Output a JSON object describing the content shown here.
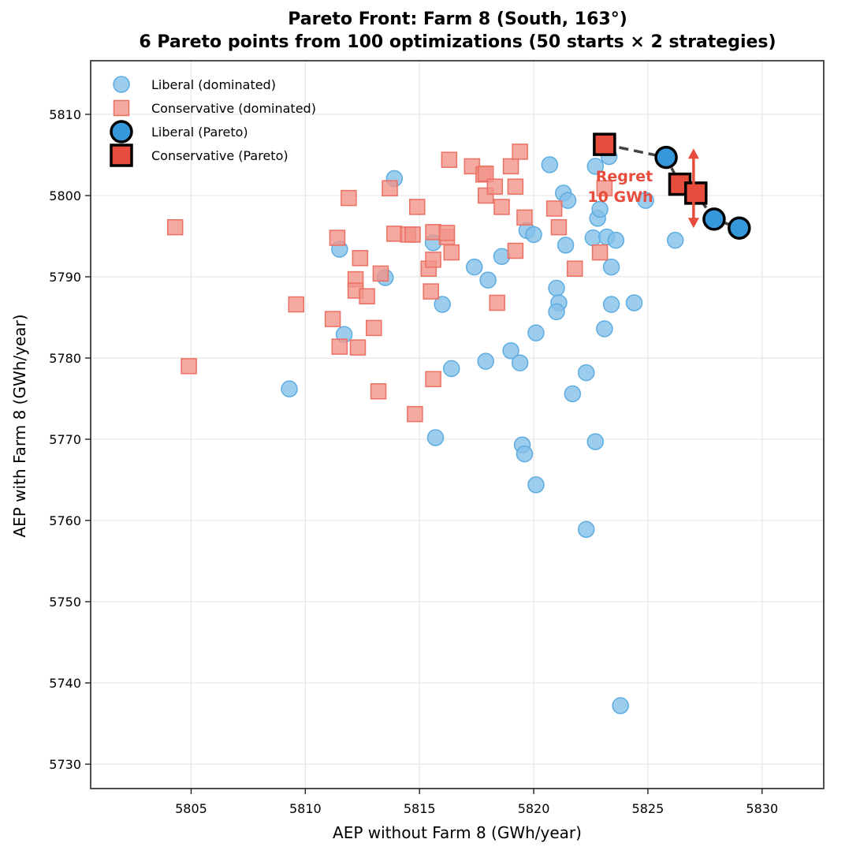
{
  "chart_data": {
    "type": "scatter",
    "title": "Pareto Front: Farm 8 (South, 163°)",
    "subtitle": "6 Pareto points from 100 optimizations (50 starts × 2 strategies)",
    "xlabel": "AEP without Farm 8 (GWh/year)",
    "ylabel": "AEP with Farm 8 (GWh/year)",
    "xlim": [
      5800.6,
      5832.7
    ],
    "ylim": [
      5727.0,
      5816.6
    ],
    "xticks": [
      5805,
      5810,
      5815,
      5820,
      5825,
      5830
    ],
    "yticks": [
      5730,
      5740,
      5750,
      5760,
      5770,
      5780,
      5790,
      5800,
      5810
    ],
    "grid": true,
    "legend_position": "upper left",
    "series": [
      {
        "name": "Liberal (dominated)",
        "marker": "circle",
        "color": "#85c1e9",
        "edge_color": "#5dade2",
        "points": [
          [
            5813.9,
            5802.1
          ],
          [
            5820.7,
            5803.8
          ],
          [
            5823.3,
            5804.8
          ],
          [
            5822.7,
            5803.6
          ],
          [
            5821.3,
            5800.3
          ],
          [
            5821.5,
            5799.4
          ],
          [
            5824.9,
            5799.4
          ],
          [
            5826.2,
            5794.5
          ],
          [
            5822.8,
            5797.2
          ],
          [
            5822.9,
            5798.3
          ],
          [
            5819.7,
            5795.7
          ],
          [
            5820.0,
            5795.2
          ],
          [
            5822.6,
            5794.8
          ],
          [
            5823.2,
            5794.9
          ],
          [
            5823.6,
            5794.5
          ],
          [
            5815.6,
            5794.2
          ],
          [
            5811.5,
            5793.4
          ],
          [
            5821.4,
            5793.9
          ],
          [
            5818.6,
            5792.5
          ],
          [
            5823.4,
            5791.2
          ],
          [
            5813.5,
            5789.9
          ],
          [
            5817.4,
            5791.2
          ],
          [
            5818.0,
            5789.6
          ],
          [
            5821.0,
            5788.6
          ],
          [
            5821.1,
            5786.8
          ],
          [
            5823.4,
            5786.6
          ],
          [
            5824.4,
            5786.8
          ],
          [
            5821.0,
            5785.7
          ],
          [
            5816.0,
            5786.6
          ],
          [
            5823.1,
            5783.6
          ],
          [
            5811.7,
            5782.9
          ],
          [
            5820.1,
            5783.1
          ],
          [
            5819.0,
            5780.9
          ],
          [
            5817.9,
            5779.6
          ],
          [
            5819.4,
            5779.4
          ],
          [
            5816.4,
            5778.7
          ],
          [
            5822.3,
            5778.2
          ],
          [
            5821.7,
            5775.6
          ],
          [
            5809.3,
            5776.2
          ],
          [
            5815.7,
            5770.2
          ],
          [
            5819.5,
            5769.3
          ],
          [
            5819.6,
            5768.2
          ],
          [
            5822.7,
            5769.7
          ],
          [
            5820.1,
            5764.4
          ],
          [
            5822.3,
            5758.9
          ],
          [
            5823.8,
            5737.2
          ]
        ]
      },
      {
        "name": "Conservative (dominated)",
        "marker": "square",
        "color": "#f1948a",
        "edge_color": "#ec7063",
        "points": [
          [
            5804.3,
            5796.1
          ],
          [
            5809.6,
            5786.6
          ],
          [
            5804.9,
            5779.0
          ],
          [
            5811.9,
            5799.7
          ],
          [
            5811.4,
            5794.8
          ],
          [
            5812.4,
            5792.3
          ],
          [
            5812.2,
            5789.7
          ],
          [
            5812.2,
            5788.3
          ],
          [
            5812.7,
            5787.6
          ],
          [
            5811.5,
            5781.4
          ],
          [
            5811.2,
            5784.8
          ],
          [
            5812.3,
            5781.3
          ],
          [
            5813.0,
            5783.7
          ],
          [
            5813.3,
            5790.4
          ],
          [
            5813.2,
            5775.9
          ],
          [
            5813.7,
            5800.9
          ],
          [
            5813.9,
            5795.3
          ],
          [
            5814.5,
            5795.2
          ],
          [
            5814.7,
            5795.2
          ],
          [
            5814.9,
            5798.6
          ],
          [
            5814.8,
            5773.1
          ],
          [
            5815.4,
            5791.0
          ],
          [
            5815.5,
            5788.2
          ],
          [
            5815.6,
            5792.1
          ],
          [
            5815.6,
            5795.5
          ],
          [
            5816.2,
            5794.9
          ],
          [
            5816.2,
            5795.4
          ],
          [
            5816.4,
            5793.0
          ],
          [
            5816.3,
            5804.4
          ],
          [
            5817.3,
            5803.6
          ],
          [
            5817.8,
            5802.6
          ],
          [
            5817.9,
            5802.7
          ],
          [
            5817.9,
            5800.0
          ],
          [
            5818.3,
            5801.1
          ],
          [
            5818.6,
            5798.6
          ],
          [
            5819.0,
            5803.6
          ],
          [
            5819.2,
            5801.1
          ],
          [
            5819.4,
            5805.4
          ],
          [
            5819.2,
            5793.2
          ],
          [
            5819.6,
            5797.3
          ],
          [
            5818.4,
            5786.8
          ],
          [
            5820.9,
            5798.4
          ],
          [
            5821.1,
            5796.1
          ],
          [
            5821.8,
            5791.0
          ],
          [
            5822.9,
            5793.0
          ],
          [
            5823.1,
            5800.9
          ],
          [
            5815.6,
            5777.4
          ]
        ]
      },
      {
        "name": "Liberal (Pareto)",
        "marker": "circle",
        "color": "#3498db",
        "edge_color": "#000000",
        "points": [
          [
            5825.8,
            5804.7
          ],
          [
            5827.9,
            5797.1
          ],
          [
            5829.0,
            5796.0
          ]
        ]
      },
      {
        "name": "Conservative (Pareto)",
        "marker": "square",
        "color": "#e74c3c",
        "edge_color": "#000000",
        "points": [
          [
            5823.1,
            5806.3
          ],
          [
            5826.4,
            5801.4
          ],
          [
            5827.1,
            5800.3
          ]
        ]
      }
    ],
    "pareto_front_line": {
      "style": "dashed",
      "color": "#444444",
      "points": [
        [
          5823.1,
          5806.3
        ],
        [
          5825.8,
          5804.7
        ],
        [
          5826.4,
          5801.4
        ],
        [
          5827.1,
          5800.3
        ],
        [
          5827.9,
          5797.1
        ],
        [
          5829.0,
          5796.0
        ]
      ]
    },
    "annotations": [
      {
        "text_line1": "Regret",
        "text_line2": "10 GWh",
        "color": "#e74c3c",
        "arrow": {
          "type": "double-headed-vertical",
          "x": 5827.0,
          "y_from": 5805.8,
          "y_to": 5796.0
        }
      }
    ]
  }
}
